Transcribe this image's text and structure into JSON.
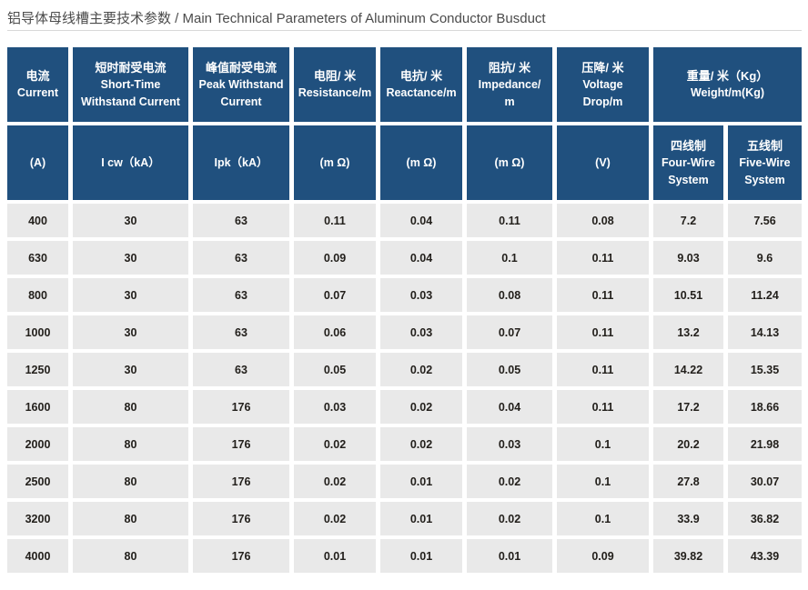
{
  "page": {
    "title": "铝导体母线槽主要技术参数 / Main Technical Parameters of Aluminum Conductor Busduct"
  },
  "colors": {
    "header_bg": "#20507E",
    "header_text": "#FFFFFF",
    "cell_bg": "#E9E9E9",
    "cell_text": "#23201C",
    "title_text": "#4B4B4B",
    "divider": "#D8D8D8"
  },
  "table": {
    "header_row1": [
      {
        "span": 1,
        "lines": [
          "电流",
          "Current"
        ]
      },
      {
        "span": 1,
        "lines": [
          "短时耐受电流",
          "Short-Time",
          "Withstand Current"
        ]
      },
      {
        "span": 1,
        "lines": [
          "峰值耐受电流",
          "Peak Withstand",
          "Current"
        ]
      },
      {
        "span": 1,
        "lines": [
          "电阻/ 米",
          "Resistance/m"
        ]
      },
      {
        "span": 1,
        "lines": [
          "电抗/ 米",
          "Reactance/m"
        ]
      },
      {
        "span": 1,
        "lines": [
          "阻抗/ 米",
          "Impedance/",
          "m"
        ]
      },
      {
        "span": 1,
        "lines": [
          "压降/ 米",
          "Voltage",
          "Drop/m"
        ]
      },
      {
        "span": 2,
        "lines": [
          "重量/ 米（Kg）",
          "Weight/m(Kg)"
        ]
      }
    ],
    "header_row2": [
      {
        "lines": [
          "(A)"
        ]
      },
      {
        "lines": [
          "I cw（kA）"
        ]
      },
      {
        "lines": [
          "Ipk（kA）"
        ]
      },
      {
        "lines": [
          "(m Ω)"
        ]
      },
      {
        "lines": [
          "(m Ω)"
        ]
      },
      {
        "lines": [
          "(m Ω)"
        ]
      },
      {
        "lines": [
          "(V)"
        ]
      },
      {
        "lines": [
          "四线制",
          "Four-Wire",
          "System"
        ]
      },
      {
        "lines": [
          "五线制",
          "Five-Wire",
          "System"
        ]
      }
    ],
    "rows": [
      [
        "400",
        "30",
        "63",
        "0.11",
        "0.04",
        "0.11",
        "0.08",
        "7.2",
        "7.56"
      ],
      [
        "630",
        "30",
        "63",
        "0.09",
        "0.04",
        "0.1",
        "0.11",
        "9.03",
        "9.6"
      ],
      [
        "800",
        "30",
        "63",
        "0.07",
        "0.03",
        "0.08",
        "0.11",
        "10.51",
        "11.24"
      ],
      [
        "1000",
        "30",
        "63",
        "0.06",
        "0.03",
        "0.07",
        "0.11",
        "13.2",
        "14.13"
      ],
      [
        "1250",
        "30",
        "63",
        "0.05",
        "0.02",
        "0.05",
        "0.11",
        "14.22",
        "15.35"
      ],
      [
        "1600",
        "80",
        "176",
        "0.03",
        "0.02",
        "0.04",
        "0.11",
        "17.2",
        "18.66"
      ],
      [
        "2000",
        "80",
        "176",
        "0.02",
        "0.02",
        "0.03",
        "0.1",
        "20.2",
        "21.98"
      ],
      [
        "2500",
        "80",
        "176",
        "0.02",
        "0.01",
        "0.02",
        "0.1",
        "27.8",
        "30.07"
      ],
      [
        "3200",
        "80",
        "176",
        "0.02",
        "0.01",
        "0.02",
        "0.1",
        "33.9",
        "36.82"
      ],
      [
        "4000",
        "80",
        "176",
        "0.01",
        "0.01",
        "0.01",
        "0.09",
        "39.82",
        "43.39"
      ]
    ]
  }
}
